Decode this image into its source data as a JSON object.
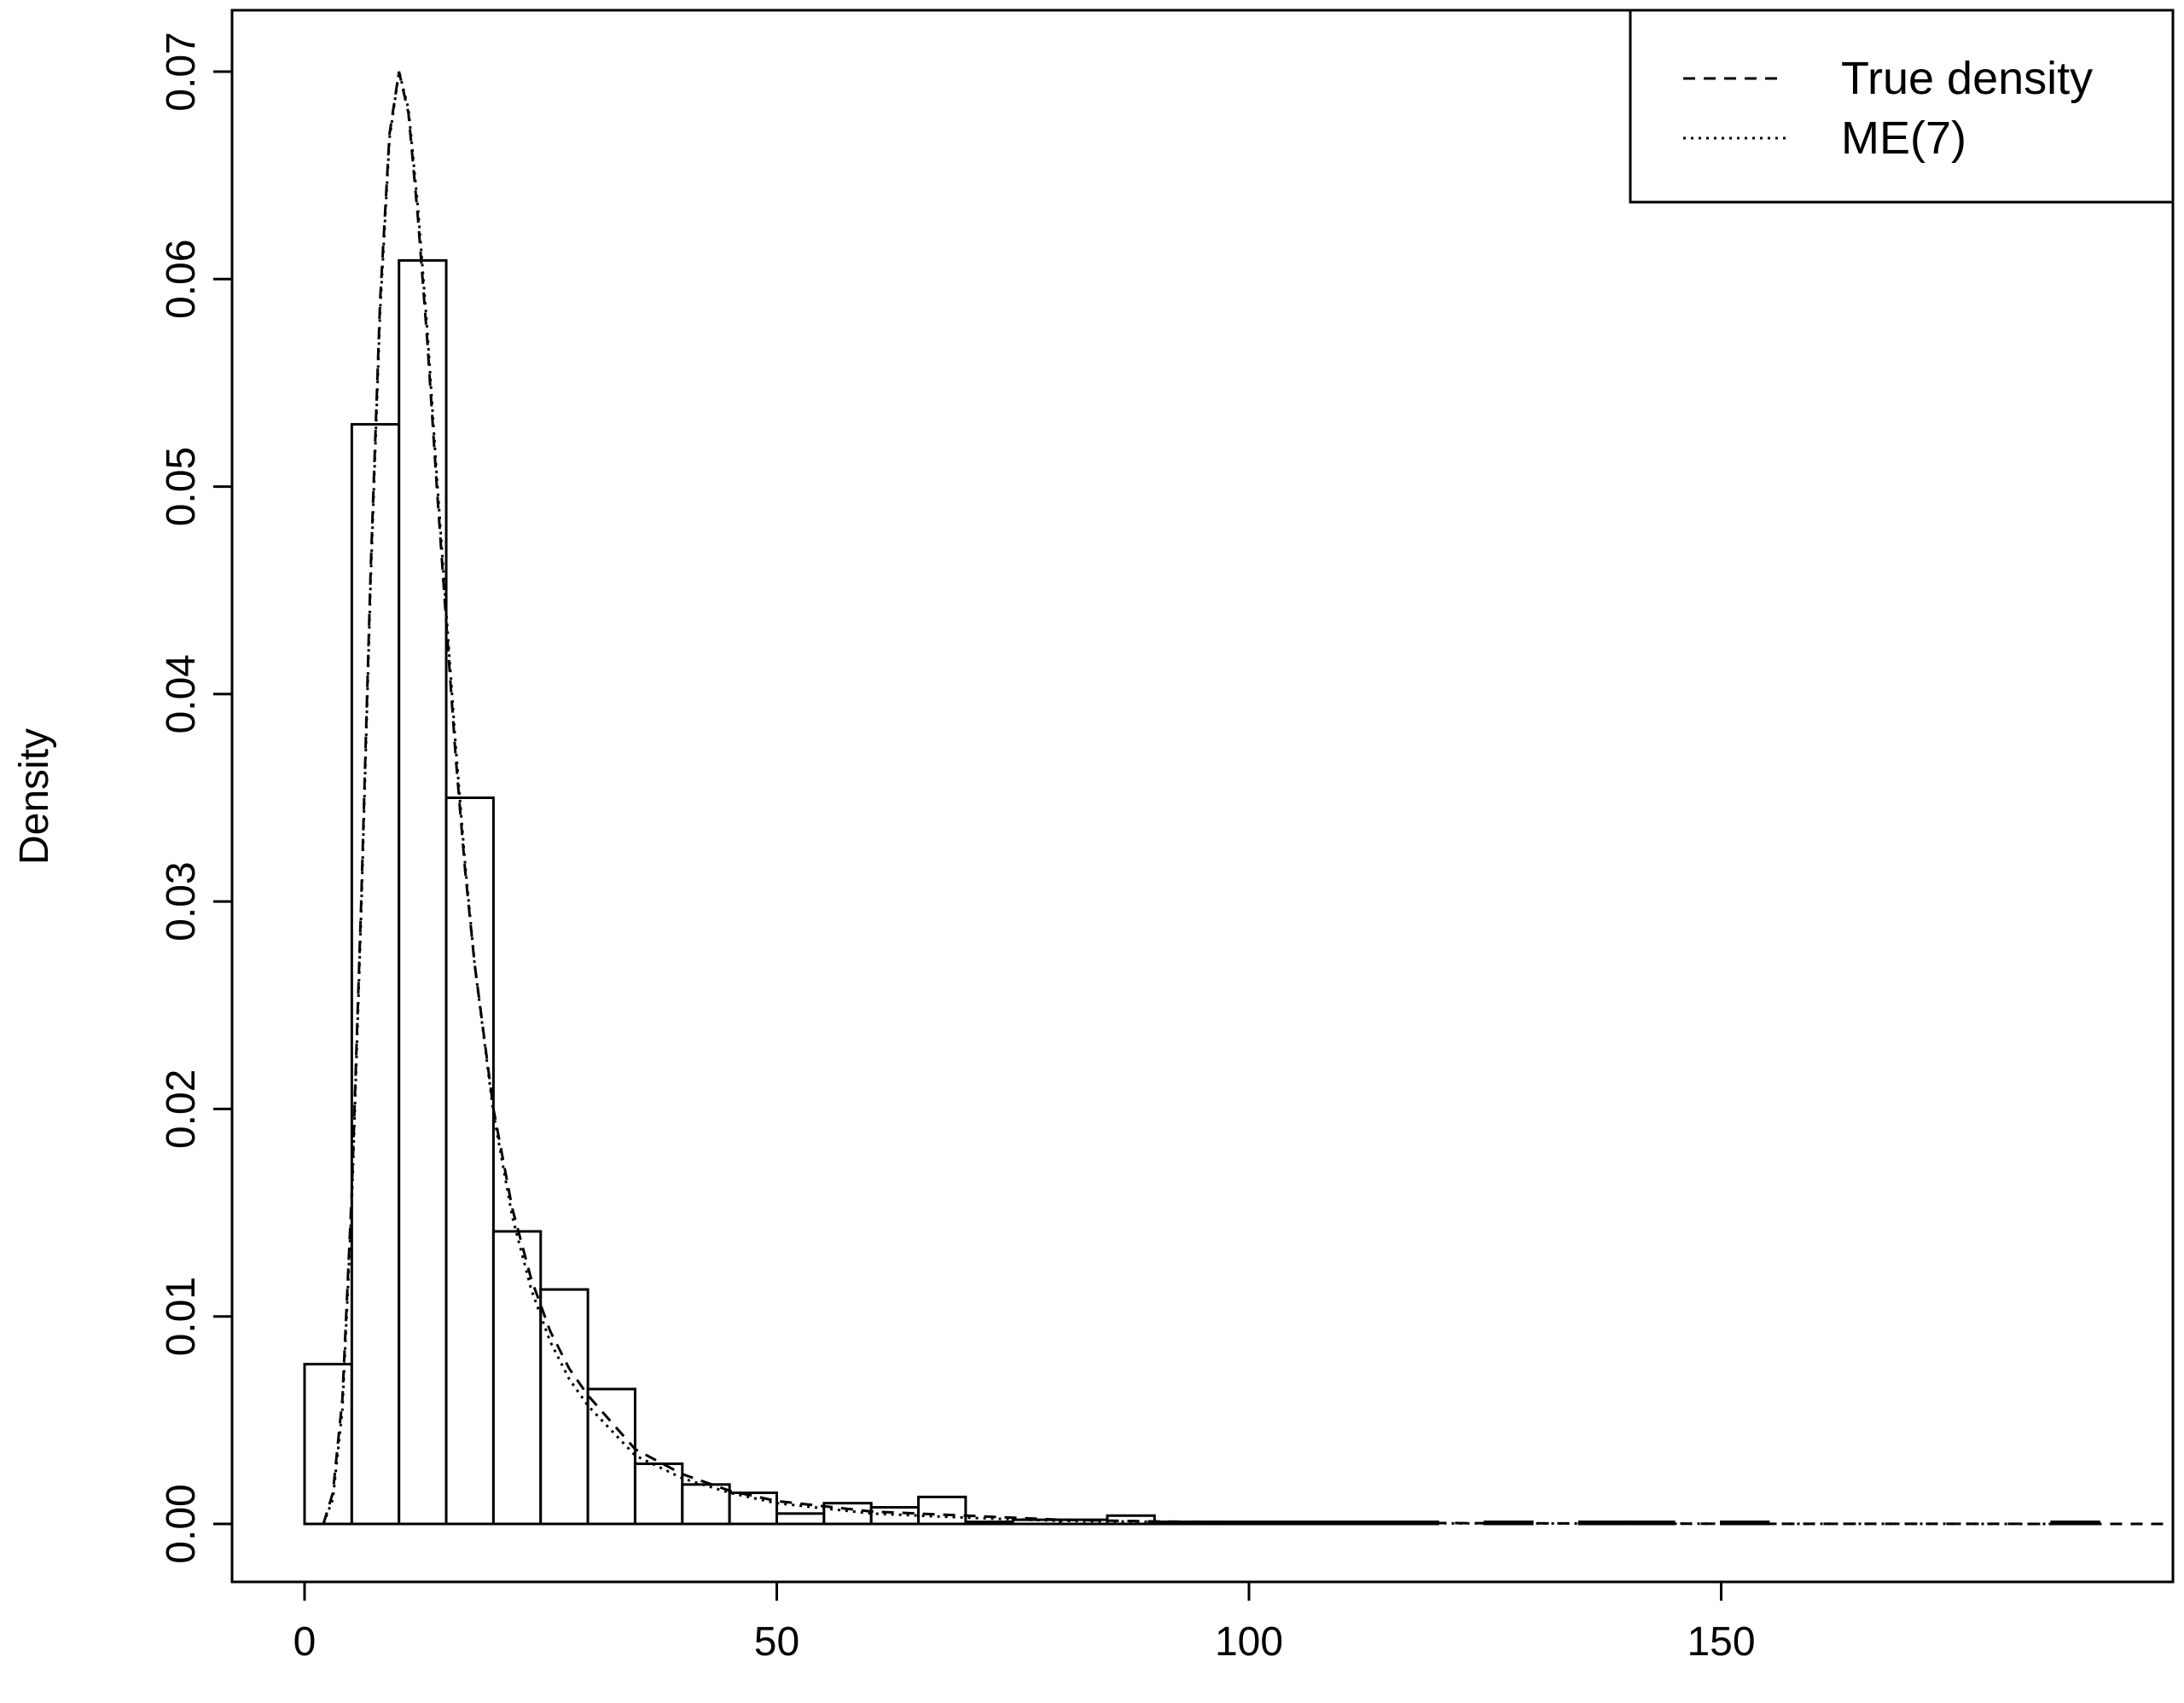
{
  "chart_data": {
    "type": "bar",
    "subtype": "histogram",
    "title": "",
    "xlabel": "",
    "ylabel": "Density",
    "xlim": [
      0,
      197
    ],
    "ylim": [
      0,
      0.07
    ],
    "x_ticks": [
      0,
      50,
      100,
      150
    ],
    "x_tick_labels": [
      "0",
      "50",
      "100",
      "150"
    ],
    "y_ticks": [
      0,
      0.01,
      0.02,
      0.03,
      0.04,
      0.05,
      0.06,
      0.07
    ],
    "y_tick_labels": [
      "0.00",
      "0.01",
      "0.02",
      "0.03",
      "0.04",
      "0.05",
      "0.06",
      "0.07"
    ],
    "grid": false,
    "legend_position": "top-right",
    "bin_width": 5,
    "bins": [
      {
        "start": 0,
        "end": 5,
        "value": 0.0077
      },
      {
        "start": 5,
        "end": 10,
        "value": 0.053
      },
      {
        "start": 10,
        "end": 15,
        "value": 0.0609
      },
      {
        "start": 15,
        "end": 20,
        "value": 0.035
      },
      {
        "start": 20,
        "end": 25,
        "value": 0.0141
      },
      {
        "start": 25,
        "end": 30,
        "value": 0.0113
      },
      {
        "start": 30,
        "end": 35,
        "value": 0.0065
      },
      {
        "start": 35,
        "end": 40,
        "value": 0.0029
      },
      {
        "start": 40,
        "end": 45,
        "value": 0.0019
      },
      {
        "start": 45,
        "end": 50,
        "value": 0.0015
      },
      {
        "start": 50,
        "end": 55,
        "value": 0.0005
      },
      {
        "start": 55,
        "end": 60,
        "value": 0.001
      },
      {
        "start": 60,
        "end": 65,
        "value": 0.0008
      },
      {
        "start": 65,
        "end": 70,
        "value": 0.0013
      },
      {
        "start": 70,
        "end": 75,
        "value": 0.0001
      },
      {
        "start": 75,
        "end": 80,
        "value": 0.0002
      },
      {
        "start": 80,
        "end": 85,
        "value": 0.0002
      },
      {
        "start": 85,
        "end": 90,
        "value": 0.0004
      },
      {
        "start": 90,
        "end": 95,
        "value": 0.0001
      },
      {
        "start": 95,
        "end": 100,
        "value": 0.0001
      },
      {
        "start": 100,
        "end": 105,
        "value": 0.0001
      },
      {
        "start": 105,
        "end": 110,
        "value": 0.0001
      },
      {
        "start": 110,
        "end": 115,
        "value": 0.0001
      },
      {
        "start": 115,
        "end": 120,
        "value": 0.0001
      },
      {
        "start": 125,
        "end": 130,
        "value": 0.0001
      },
      {
        "start": 135,
        "end": 140,
        "value": 0.0001
      },
      {
        "start": 140,
        "end": 145,
        "value": 0.0001
      },
      {
        "start": 150,
        "end": 155,
        "value": 0.0001
      },
      {
        "start": 185,
        "end": 190,
        "value": 0.0001
      }
    ],
    "series": [
      {
        "name": "True density",
        "style": "dashed",
        "x": [
          2,
          3,
          4,
          5,
          6,
          7,
          8,
          9,
          10,
          11,
          12,
          13,
          14,
          15,
          16,
          17,
          18,
          20,
          22,
          24,
          26,
          28,
          30,
          35,
          40,
          45,
          50,
          60,
          70,
          80,
          90,
          100,
          120,
          150,
          197
        ],
        "y": [
          0.0,
          0.0015,
          0.006,
          0.016,
          0.03,
          0.046,
          0.059,
          0.067,
          0.07,
          0.068,
          0.063,
          0.057,
          0.05,
          0.0435,
          0.037,
          0.0315,
          0.027,
          0.02,
          0.0152,
          0.0118,
          0.0093,
          0.0075,
          0.0062,
          0.0036,
          0.0024,
          0.0016,
          0.0011,
          0.0006,
          0.0004,
          0.0002,
          0.00012,
          8e-05,
          4e-05,
          1e-05,
          0.0
        ]
      },
      {
        "name": "ME(7)",
        "style": "dotted",
        "x": [
          2,
          3,
          4,
          5,
          6,
          7,
          8,
          9,
          10,
          11,
          12,
          13,
          14,
          15,
          16,
          17,
          18,
          20,
          22,
          24,
          26,
          28,
          30,
          35,
          40,
          45,
          50,
          60,
          70,
          80,
          90,
          100,
          120,
          150,
          190
        ],
        "y": [
          0.0,
          0.0012,
          0.0055,
          0.0155,
          0.0295,
          0.0455,
          0.0585,
          0.0668,
          0.07,
          0.0682,
          0.0635,
          0.0575,
          0.0505,
          0.044,
          0.0375,
          0.0318,
          0.027,
          0.0198,
          0.0148,
          0.0113,
          0.0088,
          0.007,
          0.0057,
          0.0033,
          0.0022,
          0.0015,
          0.001,
          0.0005,
          0.0003,
          0.00015,
          0.0001,
          6e-05,
          3e-05,
          1e-05,
          0.0
        ]
      }
    ]
  },
  "legend": {
    "items": [
      {
        "label": "True density",
        "style": "dashed"
      },
      {
        "label": "ME(7)",
        "style": "dotted"
      }
    ]
  }
}
